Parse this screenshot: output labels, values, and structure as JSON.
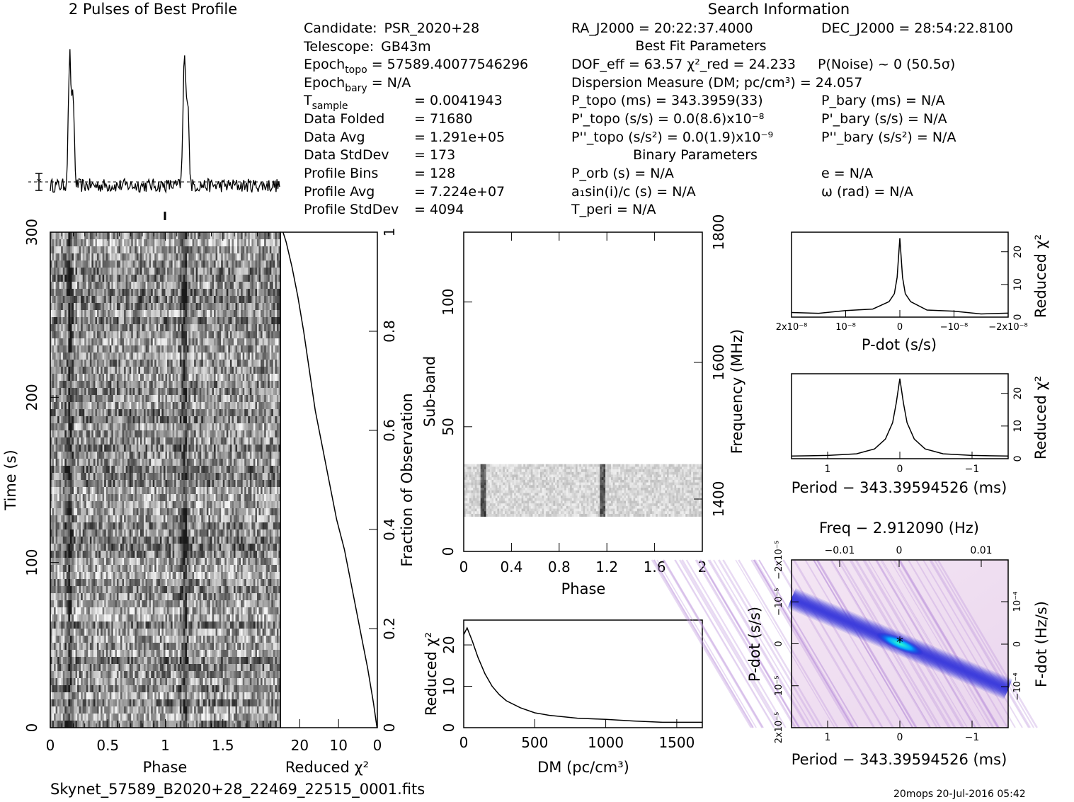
{
  "profile_title": "2 Pulses of Best Profile",
  "search_title": "Search Information",
  "info_col1": [
    {
      "label": "Candidate:",
      "value": "PSR_2020+28"
    },
    {
      "label": "Telescope:",
      "value": "GB43m"
    },
    {
      "label": "Epoch",
      "sub": "topo",
      "value": "= 57589.40077546296"
    },
    {
      "label": "Epoch",
      "sub": "bary",
      "value": "= N/A"
    },
    {
      "label": "T",
      "sub": "sample",
      "value": "= 0.0041943"
    },
    {
      "label": "Data Folded",
      "value": "= 71680"
    },
    {
      "label": "Data Avg",
      "value": "= 1.291e+05"
    },
    {
      "label": "Data StdDev",
      "value": "= 173"
    },
    {
      "label": "Profile Bins",
      "value": "= 128"
    },
    {
      "label": "Profile Avg",
      "value": "= 7.224e+07"
    },
    {
      "label": "Profile StdDev",
      "value": "= 4094"
    }
  ],
  "info_col2": [
    "RA_J2000 = 20:22:37.4000",
    "Best Fit Parameters",
    "DOF_eff = 63.57  χ²_red = 24.233",
    "Dispersion Measure (DM; pc/cm³) = 24.057",
    "P_topo (ms) = 343.3959(33)",
    "P'_topo (s/s) = 0.0(8.6)x10⁻⁸",
    "P''_topo (s/s²) = 0.0(1.9)x10⁻⁹",
    "Binary Parameters",
    "P_orb (s) = N/A",
    "a₁sin(i)/c (s) = N/A",
    "T_peri = N/A"
  ],
  "info_col3": [
    "DEC_J2000 = 28:54:22.8100",
    "P(Noise) ~ 0   (50.5σ)",
    "P_bary (ms) = N/A",
    "P'_bary (s/s) = N/A",
    "P''_bary (s/s²) = N/A",
    "e = N/A",
    "ω (rad) = N/A"
  ],
  "footer_filename": "Skynet_57589_B2020+28_22469_22515_0001.fits",
  "footer_stamp": "20mops 20-Jul-2016 05:42",
  "chart_data": [
    {
      "type": "line",
      "name": "profile",
      "title": "2 Pulses of Best Profile",
      "x_range": [
        0,
        2
      ],
      "pulse_phases": [
        0.17,
        1.17
      ],
      "peak_height": 1.0,
      "baseline": 0.0
    },
    {
      "type": "heatmap",
      "name": "time-phase",
      "xlabel": "Phase",
      "ylabel": "Time (s)",
      "xlim": [
        0,
        2
      ],
      "ylim": [
        0,
        300
      ],
      "xticks": [
        "0",
        "0.5",
        "1",
        "1.5"
      ],
      "yticks": [
        "0",
        "100",
        "200",
        "300"
      ],
      "pulse_phases": [
        0.17,
        1.17
      ],
      "colormap": "grayscale"
    },
    {
      "type": "line",
      "name": "chi2-vs-fraction",
      "xlabel": "Reduced χ²",
      "ylabel": "Fraction of Observation",
      "xticks": [
        "20",
        "10",
        "0"
      ],
      "yticks": [
        "0",
        "0.2",
        "0.4",
        "0.6",
        "0.8",
        "1"
      ],
      "xlim": [
        25,
        0
      ],
      "ylim": [
        0,
        1
      ],
      "x": [
        0.1,
        1.0,
        2.5,
        4.5,
        6.5,
        8.5,
        10.5,
        12.5,
        14.0,
        16.0,
        17.5,
        19.0,
        20.5,
        22.0,
        23.5,
        24.3
      ],
      "y": [
        0.0,
        0.05,
        0.12,
        0.2,
        0.28,
        0.36,
        0.42,
        0.5,
        0.56,
        0.64,
        0.72,
        0.8,
        0.87,
        0.93,
        0.98,
        1.0
      ]
    },
    {
      "type": "heatmap",
      "name": "subband-phase",
      "xlabel": "Phase",
      "ylabel": "Sub-band",
      "ylabel_right": "Frequency (MHz)",
      "xlim": [
        0,
        2
      ],
      "ylim": [
        0,
        128
      ],
      "xticks": [
        "0",
        "0.4",
        "0.8",
        "1.2",
        "1.6",
        "2"
      ],
      "yticks": [
        "0",
        "50",
        "100"
      ],
      "yticks_right": [
        "1400",
        "1600",
        "1800"
      ],
      "band_subbands": [
        14,
        35
      ],
      "pulse_phases": [
        0.17,
        1.17
      ],
      "colormap": "grayscale"
    },
    {
      "type": "line",
      "name": "dm-curve",
      "xlabel": "DM (pc/cm³)",
      "ylabel": "Reduced χ²",
      "xlim": [
        0,
        1680
      ],
      "ylim": [
        0,
        26
      ],
      "xticks": [
        "0",
        "500",
        "1000",
        "1500"
      ],
      "yticks": [
        "0",
        "10",
        "20"
      ],
      "x": [
        0,
        24,
        60,
        100,
        150,
        200,
        250,
        300,
        400,
        500,
        600,
        800,
        1000,
        1200,
        1400,
        1680
      ],
      "y": [
        22.5,
        24.1,
        21.0,
        17.0,
        13.0,
        10.0,
        8.0,
        6.5,
        4.8,
        3.6,
        3.0,
        2.3,
        2.0,
        1.6,
        1.3,
        1.3
      ]
    },
    {
      "type": "line",
      "name": "pdot-curve",
      "xlabel": "P-dot (s/s)",
      "ylabel": "Reduced χ²",
      "xticks": [
        "2x10⁻⁸",
        "10⁻⁸",
        "0",
        "−10⁻⁸",
        "−2x10⁻⁸"
      ],
      "yticks": [
        "0",
        "10",
        "20"
      ],
      "xlim": [
        2e-08,
        -2e-08
      ],
      "ylim": [
        0,
        26
      ],
      "x": [
        2e-08,
        1.5e-08,
        1e-08,
        5e-09,
        2e-09,
        1e-09,
        5e-10,
        0,
        -5e-10,
        -1e-09,
        -2e-09,
        -5e-09,
        -1e-08,
        -1.5e-08,
        -2e-08
      ],
      "y": [
        1.2,
        1.5,
        1.8,
        2.8,
        4.5,
        7.5,
        12.0,
        24.5,
        12.0,
        7.5,
        4.5,
        2.5,
        1.6,
        1.3,
        1.0
      ]
    },
    {
      "type": "line",
      "name": "period-curve",
      "xlabel": "Period − 343.39594526 (ms)",
      "ylabel": "Reduced χ²",
      "xticks": [
        "1",
        "0",
        "−1"
      ],
      "yticks": [
        "0",
        "10",
        "20"
      ],
      "xlim": [
        1.5,
        -1.5
      ],
      "ylim": [
        0,
        26
      ],
      "x": [
        1.5,
        1.0,
        0.6,
        0.35,
        0.2,
        0.1,
        0.05,
        0,
        -0.05,
        -0.1,
        -0.2,
        -0.35,
        -0.6,
        -1.0,
        -1.5
      ],
      "y": [
        0.8,
        1.0,
        1.5,
        3.0,
        6.0,
        11.0,
        17.0,
        24.5,
        17.0,
        11.0,
        6.0,
        3.0,
        1.5,
        1.0,
        0.8
      ]
    },
    {
      "type": "heatmap",
      "name": "period-pdot",
      "title_top": "Freq − 2.912090 (Hz)",
      "xlabel": "Period − 343.39594526 (ms)",
      "ylabel": "P-dot (s/s)",
      "ylabel_right": "F-dot (Hz/s)",
      "xticks": [
        "1",
        "0",
        "−1"
      ],
      "xticks_top": [
        "−0.01",
        "0",
        "0.01"
      ],
      "yticks": [
        "2x10⁻⁵",
        "10⁻⁵",
        "0",
        "−10⁻⁵",
        "−2x10⁻⁵"
      ],
      "yticks_right": [
        "10⁻⁴",
        "0",
        "−10⁻⁴"
      ],
      "xlim": [
        1.5,
        -1.5
      ],
      "ylim": [
        2e-05,
        -2e-05
      ],
      "best_period_offset": 0.0,
      "best_pdot": 0.0,
      "colormap": "pink-blue-cyan"
    }
  ]
}
